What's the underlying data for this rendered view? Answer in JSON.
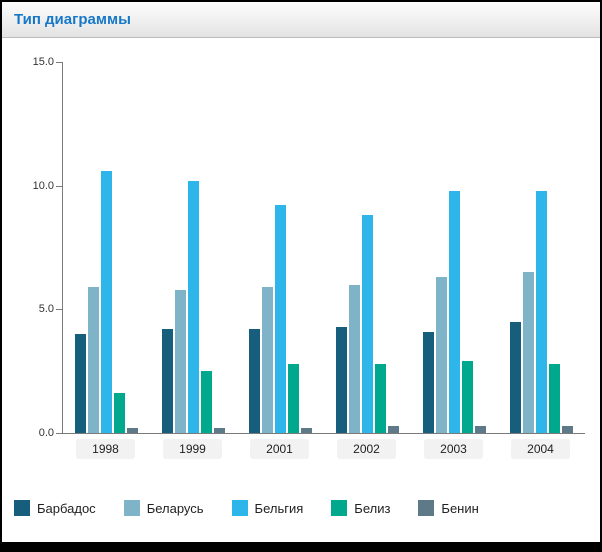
{
  "header": {
    "title": "Тип диаграммы"
  },
  "chart_data": {
    "type": "bar",
    "title": "Тип диаграммы",
    "xlabel": "",
    "ylabel": "",
    "ylim": [
      0,
      15
    ],
    "yticks": [
      "15.0",
      "10.0",
      "5.0",
      "0.0"
    ],
    "grid": false,
    "legend_position": "bottom",
    "categories": [
      "1998",
      "1999",
      "2001",
      "2002",
      "2003",
      "2004"
    ],
    "series": [
      {
        "name": "Барбадос",
        "color": "#175d7c",
        "values": [
          4.0,
          4.2,
          4.2,
          4.3,
          4.1,
          4.5
        ]
      },
      {
        "name": "Беларусь",
        "color": "#7fb3c8",
        "values": [
          5.9,
          5.8,
          5.9,
          6.0,
          6.3,
          6.5
        ]
      },
      {
        "name": "Бельгия",
        "color": "#2eb5ea",
        "values": [
          10.6,
          10.2,
          9.2,
          8.8,
          9.8,
          9.8
        ]
      },
      {
        "name": "Белиз",
        "color": "#00a98e",
        "values": [
          1.6,
          2.5,
          2.8,
          2.8,
          2.9,
          2.8
        ]
      },
      {
        "name": "Бенин",
        "color": "#5e7a88",
        "values": [
          0.2,
          0.2,
          0.2,
          0.3,
          0.3,
          0.3
        ]
      }
    ]
  }
}
